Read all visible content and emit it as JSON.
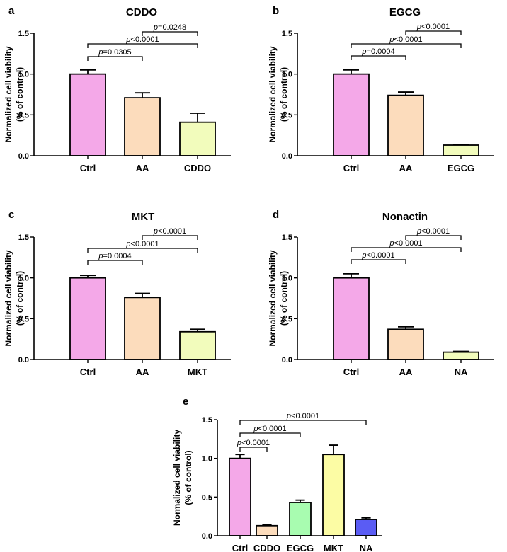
{
  "chart_data": [
    {
      "panel": "a",
      "title": "CDDO",
      "type": "bar",
      "ylabel_line1": "Normalized cell viability",
      "ylabel_line2": "(% of control)",
      "ylim": [
        0,
        1.5
      ],
      "yticks": [
        "0.0",
        "0.5",
        "1.0",
        "1.5"
      ],
      "categories": [
        "Ctrl",
        "AA",
        "CDDO"
      ],
      "values": [
        1.0,
        0.71,
        0.41
      ],
      "errors": [
        0.05,
        0.06,
        0.11
      ],
      "colors": [
        "#f4a8e8",
        "#fcdcbc",
        "#f2fcbc"
      ],
      "comparisons": [
        {
          "from": 0,
          "to": 1,
          "p_prefix": "p",
          "p_value": "=0.0305"
        },
        {
          "from": 0,
          "to": 2,
          "p_prefix": "p",
          "p_value": "<0.0001"
        },
        {
          "from": 1,
          "to": 2,
          "p_prefix": "p",
          "p_value": "=0.0248"
        }
      ]
    },
    {
      "panel": "b",
      "title": "EGCG",
      "type": "bar",
      "ylabel_line1": "Normalized cell viability",
      "ylabel_line2": "(% of control)",
      "ylim": [
        0,
        1.5
      ],
      "yticks": [
        "0.0",
        "0.5",
        "1.0",
        "1.5"
      ],
      "categories": [
        "Ctrl",
        "AA",
        "EGCG"
      ],
      "values": [
        1.0,
        0.74,
        0.13
      ],
      "errors": [
        0.05,
        0.04,
        0.01
      ],
      "colors": [
        "#f4a8e8",
        "#fcdcbc",
        "#f2fcbc"
      ],
      "comparisons": [
        {
          "from": 0,
          "to": 1,
          "p_prefix": "p",
          "p_value": "=0.0004"
        },
        {
          "from": 0,
          "to": 2,
          "p_prefix": "p",
          "p_value": "<0.0001"
        },
        {
          "from": 1,
          "to": 2,
          "p_prefix": "p",
          "p_value": "<0.0001"
        }
      ]
    },
    {
      "panel": "c",
      "title": "MKT",
      "type": "bar",
      "ylabel_line1": "Normalized cell viability",
      "ylabel_line2": "(% of control)",
      "ylim": [
        0,
        1.5
      ],
      "yticks": [
        "0.0",
        "0.5",
        "1.0",
        "1.5"
      ],
      "categories": [
        "Ctrl",
        "AA",
        "MKT"
      ],
      "values": [
        1.0,
        0.76,
        0.34
      ],
      "errors": [
        0.03,
        0.05,
        0.03
      ],
      "colors": [
        "#f4a8e8",
        "#fcdcbc",
        "#f2fcbc"
      ],
      "comparisons": [
        {
          "from": 0,
          "to": 1,
          "p_prefix": "p",
          "p_value": "=0.0004"
        },
        {
          "from": 0,
          "to": 2,
          "p_prefix": "p",
          "p_value": "<0.0001"
        },
        {
          "from": 1,
          "to": 2,
          "p_prefix": "p",
          "p_value": "<0.0001"
        }
      ]
    },
    {
      "panel": "d",
      "title": "Nonactin",
      "type": "bar",
      "ylabel_line1": "Normalized cell viability",
      "ylabel_line2": "(% of control)",
      "ylim": [
        0,
        1.5
      ],
      "yticks": [
        "0.0",
        "0.5",
        "1.0",
        "1.5"
      ],
      "categories": [
        "Ctrl",
        "AA",
        "NA"
      ],
      "values": [
        1.0,
        0.37,
        0.09
      ],
      "errors": [
        0.05,
        0.03,
        0.01
      ],
      "colors": [
        "#f4a8e8",
        "#fcdcbc",
        "#f2fcbc"
      ],
      "comparisons": [
        {
          "from": 0,
          "to": 1,
          "p_prefix": "p",
          "p_value": "<0.0001"
        },
        {
          "from": 0,
          "to": 2,
          "p_prefix": "p",
          "p_value": "<0.0001"
        },
        {
          "from": 1,
          "to": 2,
          "p_prefix": "p",
          "p_value": "<0.0001"
        }
      ]
    },
    {
      "panel": "e",
      "title": "",
      "type": "bar",
      "ylabel_line1": "Normalized cell viability",
      "ylabel_line2": "(% of control)",
      "ylim": [
        0,
        1.5
      ],
      "yticks": [
        "0.0",
        "0.5",
        "1.0",
        "1.5"
      ],
      "categories": [
        "Ctrl",
        "CDDO",
        "EGCG",
        "MKT",
        "NA"
      ],
      "values": [
        1.0,
        0.13,
        0.43,
        1.05,
        0.21
      ],
      "errors": [
        0.05,
        0.01,
        0.03,
        0.12,
        0.02
      ],
      "colors": [
        "#f4a8e8",
        "#fcdcbc",
        "#a8fcb0",
        "#fcfca4",
        "#5a5cf4"
      ],
      "comparisons": [
        {
          "from": 0,
          "to": 1,
          "p_prefix": "p",
          "p_value": "<0.0001"
        },
        {
          "from": 0,
          "to": 2,
          "p_prefix": "p",
          "p_value": "<0.0001"
        },
        {
          "from": 0,
          "to": 4,
          "p_prefix": "p",
          "p_value": "<0.0001"
        }
      ]
    }
  ]
}
